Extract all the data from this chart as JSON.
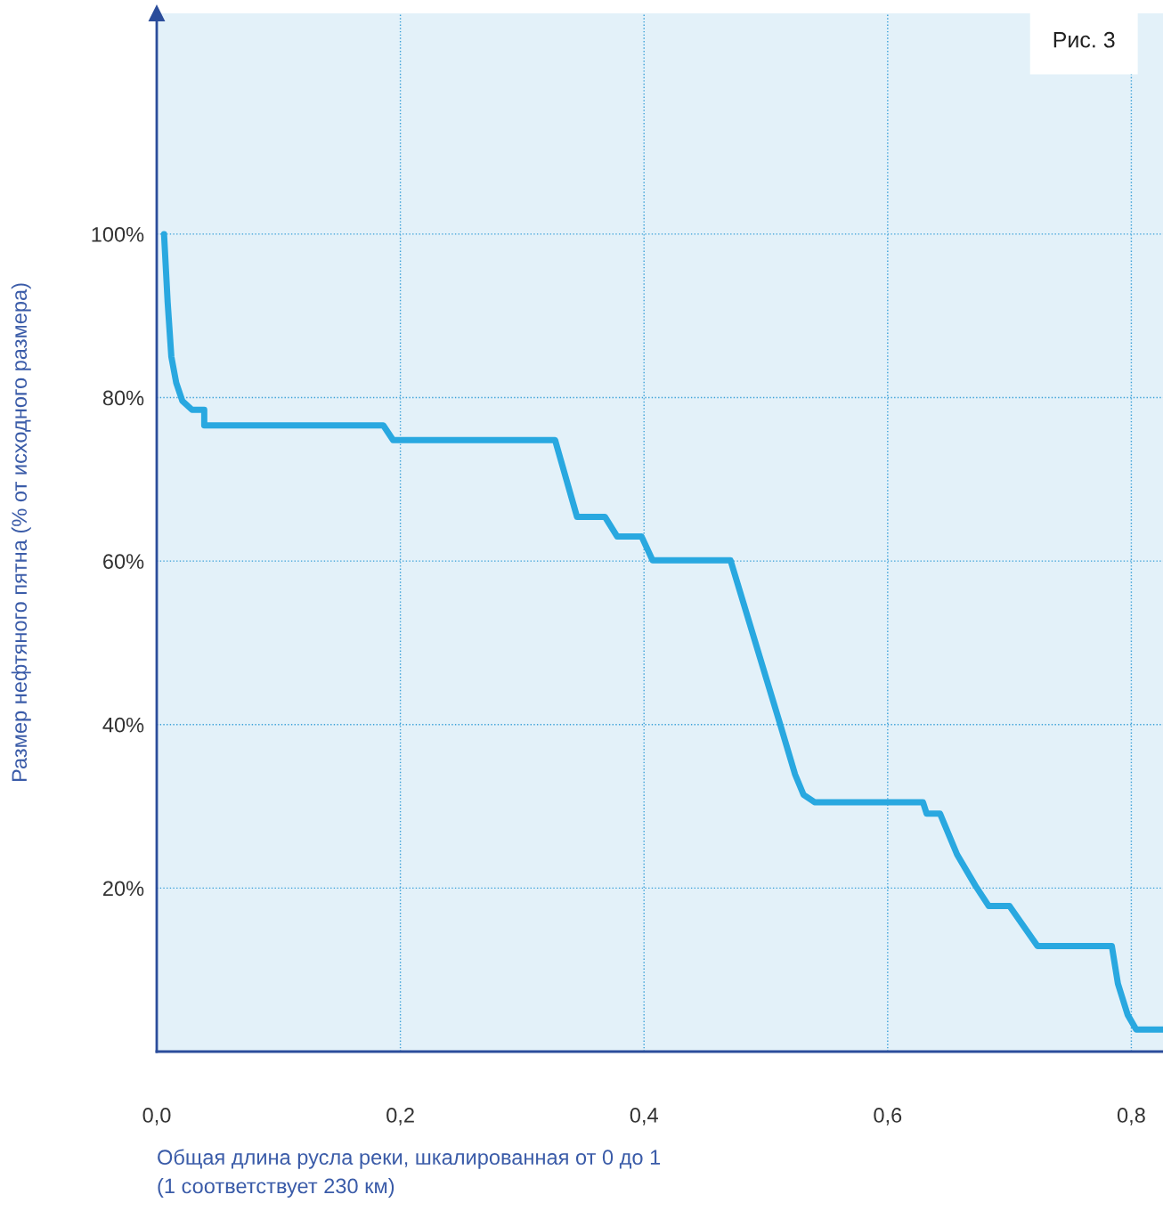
{
  "chart_data": {
    "type": "line",
    "xlabel": "Общая длина русла реки, шкалированная от 0 до 1\n(1 соответствует 230 км)",
    "ylabel": "Размер нефтяного пятна (% от исходного размера)",
    "annotations": [
      "Рис. 3"
    ],
    "xlim": [
      0,
      0.826
    ],
    "ylim": [
      0,
      127
    ],
    "xticks": [
      {
        "value": 0,
        "label": "0,0"
      },
      {
        "value": 0.2,
        "label": "0,2"
      },
      {
        "value": 0.4,
        "label": "0,4"
      },
      {
        "value": 0.6,
        "label": "0,6"
      },
      {
        "value": 0.8,
        "label": "0,8"
      }
    ],
    "yticks": [
      {
        "value": 20,
        "label": "20%"
      },
      {
        "value": 40,
        "label": "40%"
      },
      {
        "value": 60,
        "label": "60%"
      },
      {
        "value": 80,
        "label": "80%"
      },
      {
        "value": 100,
        "label": "100%"
      }
    ],
    "grid": true,
    "marker": "none",
    "line_style": "solid",
    "series": [
      {
        "color": "#29a8e0",
        "x": [
          0.006,
          0.009,
          0.012,
          0.016,
          0.021,
          0.029,
          0.039,
          0.039,
          0.186,
          0.194,
          0.327,
          0.345,
          0.368,
          0.378,
          0.398,
          0.407,
          0.471,
          0.511,
          0.524,
          0.531,
          0.54,
          0.629,
          0.632,
          0.643,
          0.657,
          0.672,
          0.683,
          0.7,
          0.723,
          0.784,
          0.789,
          0.797,
          0.804,
          0.826
        ],
        "values": [
          100,
          91.6,
          85,
          81.8,
          79.6,
          78.5,
          78.5,
          76.6,
          76.6,
          74.8,
          74.8,
          65.4,
          65.4,
          63,
          63,
          60.1,
          60.1,
          40.4,
          33.9,
          31.4,
          30.5,
          30.5,
          29.1,
          29.1,
          24.1,
          20.3,
          17.8,
          17.8,
          12.9,
          12.9,
          8.3,
          4.5,
          2.7,
          2.7
        ]
      }
    ]
  }
}
